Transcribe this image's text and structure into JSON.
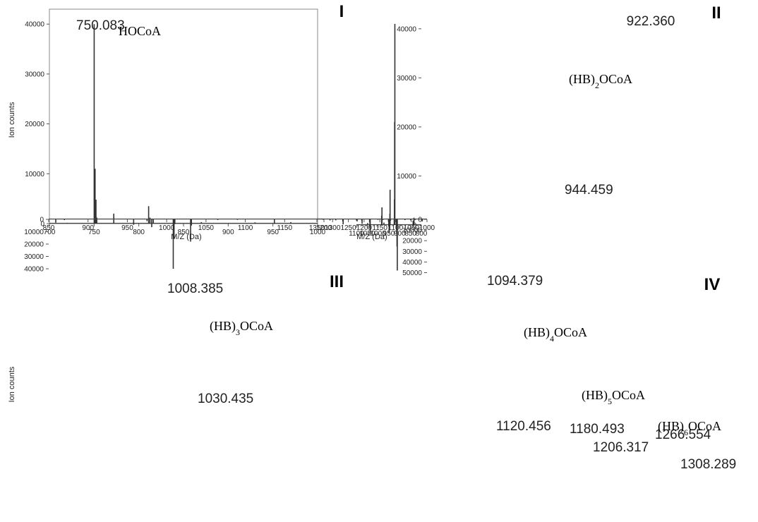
{
  "chart_data": [
    {
      "type": "line",
      "panel": "I",
      "xlim": [
        700,
        1000
      ],
      "xticks": [
        700,
        750,
        800,
        850,
        900,
        950,
        1000
      ],
      "ylim": [
        0,
        43000
      ],
      "yticks": [
        0,
        10000,
        20000,
        30000,
        40000
      ],
      "ylabel": "Ion counts",
      "xlabel": "",
      "annotations": [
        {
          "text": "HOCoA"
        }
      ],
      "peak_labels": [
        {
          "x": 750.083,
          "y": 40000,
          "text": "750.083"
        }
      ],
      "series": [
        {
          "peaks": [
            {
              "x": 750.083,
              "y": 40000
            },
            {
              "x": 751.1,
              "y": 11000
            },
            {
              "x": 752.1,
              "y": 4800
            },
            {
              "x": 753,
              "y": 1200
            },
            {
              "x": 772,
              "y": 2000
            },
            {
              "x": 811,
              "y": 3500
            },
            {
              "x": 812.5,
              "y": 1200
            },
            {
              "x": 720,
              "y": 150
            },
            {
              "x": 870,
              "y": 300
            },
            {
              "x": 930,
              "y": 250
            },
            {
              "x": 970,
              "y": 300
            }
          ]
        }
      ]
    },
    {
      "type": "line",
      "panel": "II",
      "xlim": [
        800,
        1100
      ],
      "xticks": [
        800,
        850,
        900,
        950,
        1000,
        1050,
        1100
      ],
      "ylim": [
        0,
        44000
      ],
      "yticks": [
        0,
        10000,
        20000,
        30000,
        40000
      ],
      "ylabel": "",
      "xlabel": "",
      "annotations": [
        {
          "text": "(HB)",
          "sub": "2",
          "rest": "OCoA"
        }
      ],
      "peak_labels": [
        {
          "x": 922.36,
          "y": 41000,
          "text": "922.360"
        },
        {
          "x": 944.459,
          "y": 7200,
          "text": "944.459"
        }
      ],
      "series": [
        {
          "peaks": [
            {
              "x": 834,
              "y": 1500
            },
            {
              "x": 838,
              "y": 900
            },
            {
              "x": 922.36,
              "y": 41000
            },
            {
              "x": 923.4,
              "y": 21000
            },
            {
              "x": 924.4,
              "y": 5200
            },
            {
              "x": 925.4,
              "y": 1300
            },
            {
              "x": 944.459,
              "y": 7200
            },
            {
              "x": 945.5,
              "y": 2300
            },
            {
              "x": 973,
              "y": 500
            },
            {
              "x": 982,
              "y": 3600
            },
            {
              "x": 983.5,
              "y": 1900
            },
            {
              "x": 1048,
              "y": 400
            }
          ]
        }
      ]
    },
    {
      "type": "line",
      "panel": "III",
      "xlim": [
        850,
        1200
      ],
      "xticks": [
        850,
        900,
        950,
        1000,
        1050,
        1100,
        1150,
        1200
      ],
      "ylim": [
        0,
        44000
      ],
      "yticks": [
        0,
        10000,
        20000,
        30000,
        40000
      ],
      "ylabel": "Ion counts",
      "xlabel": "M/Z (Da)",
      "annotations": [
        {
          "text": "(HB)",
          "sub": "3",
          "rest": "OCoA"
        }
      ],
      "peak_labels": [
        {
          "x": 1008.385,
          "y": 40000,
          "text": "1008.385"
        },
        {
          "x": 1030.435,
          "y": 18000,
          "text": "1030.435"
        }
      ],
      "series": [
        {
          "peaks": [
            {
              "x": 859,
              "y": 2700
            },
            {
              "x": 870,
              "y": 600
            },
            {
              "x": 958,
              "y": 4400
            },
            {
              "x": 975,
              "y": 1400
            },
            {
              "x": 981,
              "y": 6300
            },
            {
              "x": 983,
              "y": 3500
            },
            {
              "x": 1008.385,
              "y": 40000
            },
            {
              "x": 1009.4,
              "y": 15500
            },
            {
              "x": 1010.4,
              "y": 3800
            },
            {
              "x": 1030.435,
              "y": 18000
            },
            {
              "x": 1031.5,
              "y": 5000
            },
            {
              "x": 1065,
              "y": 500
            },
            {
              "x": 1090,
              "y": 400
            },
            {
              "x": 1137,
              "y": 3600
            }
          ]
        }
      ]
    },
    {
      "type": "line",
      "panel": "IV",
      "xlim": [
        1000,
        1350
      ],
      "xticks": [
        1000,
        1050,
        1100,
        1150,
        1200,
        1250,
        1300,
        1350
      ],
      "ylim": [
        0,
        51000
      ],
      "yticks": [
        0,
        10000,
        20000,
        30000,
        40000,
        50000
      ],
      "ylabel": "",
      "xlabel": "M/Z (Da)",
      "annotations": [
        {
          "text": "(HB)",
          "sub": "4",
          "rest": "OCoA"
        },
        {
          "text": "(HB)",
          "sub": "5",
          "rest": "OCoA"
        },
        {
          "text": "(HB)",
          "sub": "6",
          "rest": "OCoA"
        }
      ],
      "peak_labels": [
        {
          "x": 1094.379,
          "y": 48000,
          "text": "1094.379"
        },
        {
          "x": 1120.456,
          "y": 13000,
          "text": "1120.456"
        },
        {
          "x": 1180.493,
          "y": 13500,
          "text": "1180.493"
        },
        {
          "x": 1206.317,
          "y": 4000,
          "text": "1206.317"
        },
        {
          "x": 1266.554,
          "y": 4700,
          "text": "1266.554"
        },
        {
          "x": 1308.289,
          "y": 1000,
          "text": "1308.289"
        }
      ],
      "series": [
        {
          "peaks": [
            {
              "x": 1015,
              "y": 1900
            },
            {
              "x": 1038,
              "y": 600
            },
            {
              "x": 1052,
              "y": 900
            },
            {
              "x": 1070,
              "y": 700
            },
            {
              "x": 1094.379,
              "y": 48000
            },
            {
              "x": 1095.4,
              "y": 25500
            },
            {
              "x": 1096.4,
              "y": 13500
            },
            {
              "x": 1097.4,
              "y": 5800
            },
            {
              "x": 1098.4,
              "y": 1600
            },
            {
              "x": 1116,
              "y": 1300
            },
            {
              "x": 1120.456,
              "y": 13000
            },
            {
              "x": 1121.5,
              "y": 6600
            },
            {
              "x": 1122.5,
              "y": 2200
            },
            {
              "x": 1140,
              "y": 500
            },
            {
              "x": 1156,
              "y": 400
            },
            {
              "x": 1180.493,
              "y": 13500
            },
            {
              "x": 1181.5,
              "y": 8200
            },
            {
              "x": 1182.5,
              "y": 2600
            },
            {
              "x": 1206.317,
              "y": 4000
            },
            {
              "x": 1207.3,
              "y": 1500
            },
            {
              "x": 1222,
              "y": 1900
            },
            {
              "x": 1224,
              "y": 1200
            },
            {
              "x": 1266.554,
              "y": 4700
            },
            {
              "x": 1267.6,
              "y": 2000
            },
            {
              "x": 1290,
              "y": 900
            },
            {
              "x": 1308.289,
              "y": 1000
            },
            {
              "x": 1330,
              "y": 400
            }
          ]
        }
      ]
    }
  ]
}
